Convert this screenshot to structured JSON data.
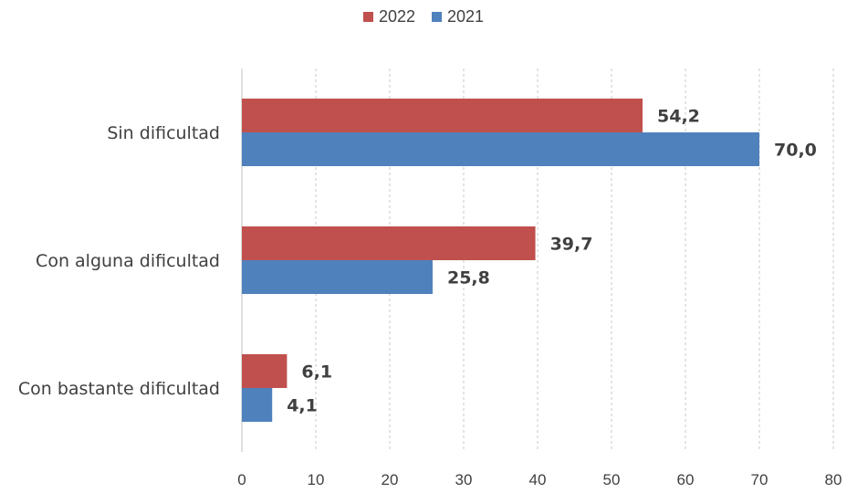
{
  "chart_data": {
    "type": "bar",
    "orientation": "horizontal",
    "categories": [
      "Sin dificultad",
      "Con alguna dificultad",
      "Con bastante dificultad"
    ],
    "series": [
      {
        "name": "2022",
        "color": "#C0504D",
        "values": [
          54.2,
          39.7,
          6.1
        ],
        "labels": [
          "54,2",
          "39,7",
          "6,1"
        ]
      },
      {
        "name": "2021",
        "color": "#4F81BD",
        "values": [
          70.0,
          25.8,
          4.1
        ],
        "labels": [
          "70,0",
          "25,8",
          "4,1"
        ]
      }
    ],
    "x_ticks": [
      "0",
      "10",
      "20",
      "30",
      "40",
      "50",
      "60",
      "70",
      "80"
    ],
    "xlim": [
      0,
      80
    ],
    "grid": "vertical-dashed",
    "legend": "top-center"
  }
}
